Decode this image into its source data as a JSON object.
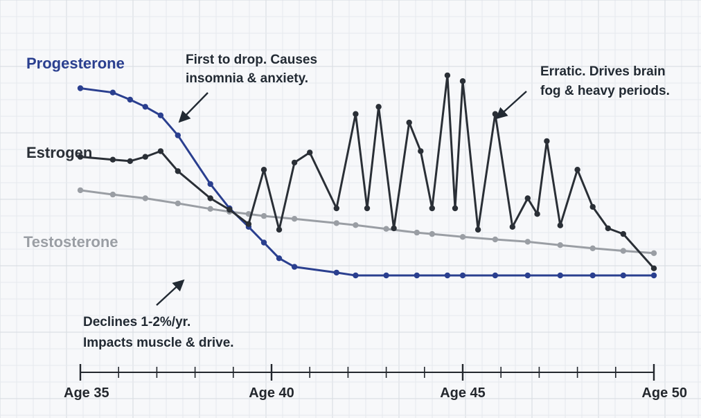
{
  "chart_data": {
    "type": "line",
    "title": "",
    "xlabel": "",
    "ylabel": "",
    "xlim": [
      35,
      50
    ],
    "ylim": [
      0,
      100
    ],
    "grid": true,
    "x_ticks": [
      35,
      40,
      45,
      50
    ],
    "tick_labels": [
      "Age 35",
      "Age 40",
      "Age 45",
      "Age 50"
    ],
    "series": [
      {
        "key": "testosterone",
        "name": "Testosterone",
        "color": "#9a9ea4",
        "points": [
          [
            35,
            52.8
          ],
          [
            35.85,
            51.3
          ],
          [
            36.7,
            50.0
          ],
          [
            37.55,
            48.2
          ],
          [
            38.4,
            46.3
          ],
          [
            38.9,
            45.3
          ],
          [
            39.4,
            44.5
          ],
          [
            39.8,
            43.8
          ],
          [
            40.6,
            42.8
          ],
          [
            41.7,
            41.3
          ],
          [
            42.2,
            40.6
          ],
          [
            43.0,
            39.3
          ],
          [
            43.8,
            38.0
          ],
          [
            44.2,
            37.5
          ],
          [
            45.0,
            36.5
          ],
          [
            45.85,
            35.6
          ],
          [
            46.7,
            34.8
          ],
          [
            47.55,
            33.6
          ],
          [
            48.4,
            32.5
          ],
          [
            49.2,
            31.6
          ],
          [
            50,
            30.8
          ]
        ]
      },
      {
        "key": "progesterone",
        "name": "Progesterone",
        "color": "#2a3f8f",
        "points": [
          [
            35,
            88.5
          ],
          [
            35.85,
            87.0
          ],
          [
            36.3,
            84.5
          ],
          [
            36.7,
            82.0
          ],
          [
            37.1,
            79.0
          ],
          [
            37.55,
            72.0
          ],
          [
            38.4,
            55.0
          ],
          [
            38.9,
            46.5
          ],
          [
            39.4,
            40.0
          ],
          [
            39.8,
            34.5
          ],
          [
            40.2,
            29.0
          ],
          [
            40.6,
            26.0
          ],
          [
            41.7,
            24.0
          ],
          [
            42.2,
            23.0
          ],
          [
            43.0,
            23.0
          ],
          [
            43.8,
            23.0
          ],
          [
            44.6,
            23.0
          ],
          [
            45.0,
            23.0
          ],
          [
            45.85,
            23.0
          ],
          [
            46.7,
            23.0
          ],
          [
            47.55,
            23.0
          ],
          [
            48.4,
            23.0
          ],
          [
            49.2,
            23.0
          ],
          [
            50,
            23.0
          ]
        ]
      },
      {
        "key": "estrogen",
        "name": "Estrogen",
        "color": "#2a2f36",
        "points": [
          [
            35,
            64.5
          ],
          [
            35.85,
            63.5
          ],
          [
            36.3,
            63.0
          ],
          [
            36.7,
            64.5
          ],
          [
            37.1,
            66.5
          ],
          [
            37.55,
            59.5
          ],
          [
            38.4,
            50.0
          ],
          [
            38.9,
            46.0
          ],
          [
            39.4,
            41.0
          ],
          [
            39.8,
            60.0
          ],
          [
            40.2,
            39.0
          ],
          [
            40.6,
            62.5
          ],
          [
            41.0,
            66.0
          ],
          [
            41.7,
            46.5
          ],
          [
            42.2,
            79.5
          ],
          [
            42.5,
            46.5
          ],
          [
            42.8,
            82.0
          ],
          [
            43.2,
            39.5
          ],
          [
            43.6,
            76.5
          ],
          [
            43.9,
            66.5
          ],
          [
            44.2,
            46.5
          ],
          [
            44.6,
            93.0
          ],
          [
            44.8,
            46.5
          ],
          [
            45.0,
            91.0
          ],
          [
            45.4,
            39.0
          ],
          [
            45.85,
            79.5
          ],
          [
            46.3,
            40.0
          ],
          [
            46.7,
            50.0
          ],
          [
            46.95,
            44.5
          ],
          [
            47.2,
            70.0
          ],
          [
            47.55,
            40.5
          ],
          [
            48.0,
            60.0
          ],
          [
            48.4,
            47.0
          ],
          [
            48.8,
            39.5
          ],
          [
            49.2,
            37.5
          ],
          [
            50,
            25.5
          ]
        ]
      }
    ],
    "series_labels": {
      "progesterone": "Progesterone",
      "estrogen": "Estrogen",
      "testosterone": "Testosterone"
    },
    "annotations": [
      {
        "key": "progesterone",
        "lines": [
          "First to drop. Causes",
          "insomnia & anxiety."
        ]
      },
      {
        "key": "estrogen",
        "lines": [
          "Erratic. Drives brain",
          "fog & heavy periods."
        ]
      },
      {
        "key": "testosterone",
        "lines": [
          "Declines 1-2%/yr.",
          "Impacts muscle & drive."
        ]
      }
    ]
  }
}
